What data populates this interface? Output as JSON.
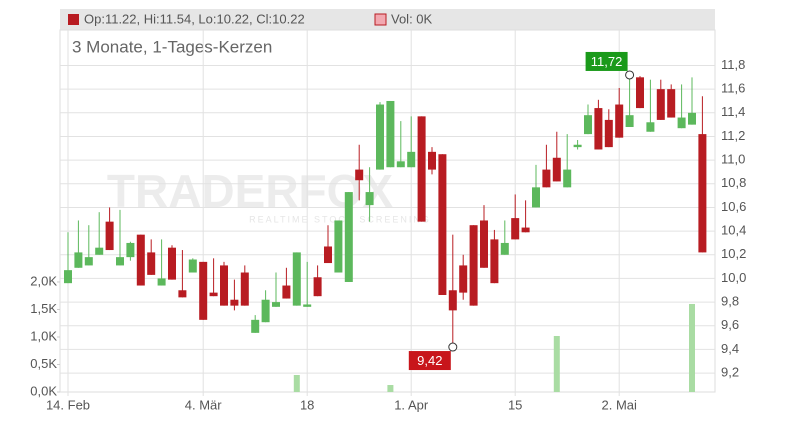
{
  "chart_data": {
    "type": "candlestick",
    "subtitle": "3 Monate, 1-Tages-Kerzen",
    "legend": {
      "ohlc_label": "Op:11.22, Hi:11.54, Lo:10.22, Cl:10.22",
      "volume_label": "Vol: 0K"
    },
    "watermark": {
      "brand": "TRADERFOX",
      "tagline": "REALTIME STOCK SCREENING"
    },
    "up_color": "#5cb85c",
    "down_color": "#b81c22",
    "grid": true,
    "categories": [
      "14. Feb",
      null,
      null,
      null,
      null,
      null,
      null,
      null,
      null,
      null,
      null,
      null,
      null,
      "4. Mär",
      null,
      null,
      null,
      null,
      null,
      null,
      null,
      null,
      null,
      "18",
      null,
      null,
      null,
      null,
      null,
      null,
      null,
      null,
      null,
      "1. Apr",
      null,
      null,
      null,
      null,
      null,
      null,
      null,
      null,
      null,
      "15",
      null,
      null,
      null,
      null,
      null,
      null,
      null,
      null,
      null,
      "2. Mai",
      null,
      null,
      null,
      null,
      null,
      null,
      null,
      null
    ],
    "open": [
      9.96,
      10.09,
      10.11,
      10.2,
      10.48,
      10.11,
      10.18,
      10.37,
      10.22,
      9.94,
      10.26,
      9.9,
      10.05,
      10.14,
      9.88,
      10.11,
      9.82,
      10.05,
      9.54,
      9.63,
      9.76,
      9.94,
      9.77,
      9.76,
      10.01,
      10.27,
      10.05,
      9.97,
      10.92,
      10.62,
      10.92,
      10.94,
      10.94,
      10.94,
      11.37,
      11.07,
      11.05,
      9.9,
      10.11,
      10.45,
      10.49,
      10.33,
      10.2,
      10.51,
      10.43,
      10.6,
      10.92,
      11.02,
      10.77,
      11.11,
      11.22,
      11.44,
      11.34,
      11.47,
      11.28,
      11.7,
      11.24,
      11.6,
      11.6,
      11.27,
      11.3,
      11.22
    ],
    "high": [
      10.39,
      10.49,
      10.45,
      10.56,
      10.6,
      10.58,
      10.31,
      10.37,
      10.33,
      10.33,
      10.28,
      10.24,
      10.17,
      10.14,
      10.17,
      10.14,
      9.99,
      10.11,
      9.69,
      9.9,
      10.05,
      10.09,
      10.22,
      10.14,
      10.11,
      10.45,
      10.49,
      10.73,
      11.13,
      10.94,
      11.49,
      11.5,
      11.33,
      11.37,
      11.37,
      11.11,
      11.05,
      10.37,
      10.2,
      10.45,
      10.62,
      10.41,
      10.49,
      10.71,
      10.66,
      10.96,
      11.13,
      11.24,
      11.22,
      11.17,
      11.47,
      11.51,
      11.43,
      11.61,
      11.72,
      11.71,
      11.68,
      11.68,
      11.64,
      11.64,
      11.7,
      11.54
    ],
    "low": [
      9.96,
      10.09,
      10.11,
      10.2,
      10.24,
      10.11,
      10.15,
      9.94,
      10.03,
      9.94,
      9.99,
      9.84,
      10.05,
      9.65,
      9.85,
      9.77,
      9.73,
      9.77,
      9.54,
      9.63,
      9.76,
      9.83,
      9.77,
      9.76,
      9.85,
      10.13,
      10.05,
      9.97,
      10.66,
      10.48,
      10.92,
      10.94,
      10.94,
      10.94,
      10.48,
      10.88,
      9.86,
      9.42,
      9.82,
      9.77,
      10.09,
      9.96,
      10.2,
      10.33,
      10.39,
      10.6,
      10.77,
      10.82,
      10.77,
      11.09,
      11.22,
      11.09,
      11.11,
      11.19,
      11.28,
      11.44,
      11.24,
      11.34,
      11.36,
      11.27,
      11.3,
      10.22
    ],
    "close": [
      10.07,
      10.22,
      10.18,
      10.26,
      10.24,
      10.18,
      10.3,
      9.94,
      10.03,
      10.0,
      9.99,
      9.84,
      10.16,
      9.65,
      9.85,
      9.77,
      9.77,
      9.77,
      9.65,
      9.82,
      9.8,
      9.83,
      10.22,
      9.78,
      9.85,
      10.13,
      10.49,
      10.73,
      10.83,
      10.73,
      11.47,
      11.5,
      10.99,
      11.07,
      10.48,
      10.92,
      9.86,
      9.73,
      9.88,
      9.77,
      10.09,
      9.96,
      10.3,
      10.33,
      10.39,
      10.77,
      10.77,
      10.82,
      10.92,
      11.13,
      11.38,
      11.09,
      11.11,
      11.19,
      11.38,
      11.44,
      11.32,
      11.34,
      11.36,
      11.36,
      11.4,
      10.22
    ],
    "ylim": [
      9.04,
      12.1
    ],
    "yticks": [
      {
        "value": 9.2,
        "label": "9,2"
      },
      {
        "value": 9.4,
        "label": "9,4"
      },
      {
        "value": 9.6,
        "label": "9,6"
      },
      {
        "value": 9.8,
        "label": "9,8"
      },
      {
        "value": 10.0,
        "label": "10,0"
      },
      {
        "value": 10.2,
        "label": "10,2"
      },
      {
        "value": 10.4,
        "label": "10,4"
      },
      {
        "value": 10.6,
        "label": "10,6"
      },
      {
        "value": 10.8,
        "label": "10,8"
      },
      {
        "value": 11.0,
        "label": "11,0"
      },
      {
        "value": 11.2,
        "label": "11,2"
      },
      {
        "value": 11.4,
        "label": "11,4"
      },
      {
        "value": 11.6,
        "label": "11,6"
      },
      {
        "value": 11.8,
        "label": "11,8"
      }
    ],
    "volume": {
      "color": "#a9dca3",
      "values": [
        0,
        0,
        0,
        0,
        0,
        0,
        0,
        0,
        0,
        0,
        0,
        0,
        0,
        0,
        0,
        0,
        0,
        0,
        0,
        0,
        0,
        0,
        309,
        0,
        0,
        0,
        0,
        0,
        0,
        0,
        0,
        127,
        0,
        0,
        0,
        0,
        0,
        0,
        0,
        0,
        0,
        0,
        0,
        0,
        0,
        0,
        0,
        1018,
        0,
        0,
        0,
        0,
        0,
        0,
        0,
        0,
        0,
        0,
        0,
        0,
        1600,
        0
      ],
      "ylim": [
        0,
        6580
      ],
      "yticks": [
        {
          "value": 0,
          "label": "0,0K"
        },
        {
          "value": 500,
          "label": "0,5K"
        },
        {
          "value": 1000,
          "label": "1,0K"
        },
        {
          "value": 1500,
          "label": "1,5K"
        },
        {
          "value": 2000,
          "label": "2,0K"
        }
      ]
    },
    "annotations": [
      {
        "value": 11.72,
        "label": "11,72",
        "index": 54,
        "color": "#1a9a1a"
      },
      {
        "value": 9.42,
        "label": "9,42",
        "index": 37,
        "color": "#c8151b"
      }
    ]
  }
}
